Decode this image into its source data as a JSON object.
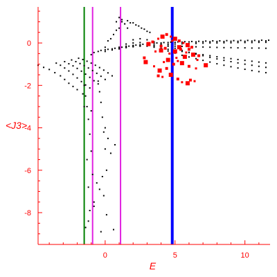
{
  "chart_data": {
    "type": "scatter",
    "xlabel": "E",
    "ylabel": "<J3>",
    "xlim": [
      -4.8,
      11.8
    ],
    "ylim": [
      -9.5,
      1.7
    ],
    "x_ticks": [
      0,
      5,
      10
    ],
    "y_ticks": [
      0,
      -2,
      -4,
      -6,
      -8
    ],
    "grid": false,
    "colors": {
      "axis": "#ff0000",
      "points": "#000000",
      "highlight": "#ff0000",
      "green_line": "#008000",
      "magenta_line": "#e020e0",
      "blue_line": "#0000ff"
    },
    "vertical_lines": [
      {
        "x": -1.5,
        "color": "#008000"
      },
      {
        "x": -0.9,
        "color": "#e020e0"
      },
      {
        "x": 1.1,
        "color": "#e020e0"
      },
      {
        "x": 4.8,
        "color": "#0000ff"
      }
    ],
    "series": [
      {
        "color": "#000000",
        "marker": "dot",
        "x": [
          -4.8,
          -4.4,
          -4.0,
          -3.6,
          -3.2,
          -2.9,
          -2.6,
          -2.3,
          -2.0,
          -3.5,
          -3.2,
          -2.9,
          -2.6,
          -2.3,
          -2.0,
          -1.7,
          -1.4,
          -1.1,
          -2.9,
          -2.6,
          -2.3,
          -2.0,
          -1.7,
          -1.4,
          -1.1,
          -0.8,
          -0.5,
          -2.4,
          -2.1,
          -1.8,
          -1.5,
          -1.2,
          -0.9,
          -0.6,
          -0.3,
          0.0,
          -1.9,
          -1.6,
          -1.3,
          -1.0,
          -0.7,
          -0.4,
          -0.1,
          0.2,
          0.5,
          -1.0,
          -0.5,
          0.0,
          0.5,
          1.0,
          1.5,
          2.0,
          2.5,
          3.0,
          3.5,
          4.0,
          4.5,
          5.0,
          5.5,
          6.0,
          6.5,
          7.0,
          7.5,
          8.0,
          8.5,
          9.0,
          9.5,
          10.0,
          10.5,
          11.0,
          11.5,
          -0.8,
          -0.3,
          0.2,
          0.7,
          1.2,
          1.7,
          2.2,
          2.7,
          3.2,
          3.7,
          4.2,
          4.7,
          5.2,
          5.7,
          6.2,
          6.7,
          7.2,
          7.7,
          8.2,
          8.7,
          9.2,
          9.7,
          10.2,
          10.7,
          11.2,
          11.7,
          0.0,
          0.5,
          1.0,
          1.5,
          2.0,
          2.5,
          3.0,
          3.5,
          4.0,
          4.5,
          5.0,
          5.5,
          6.0,
          6.5,
          7.0,
          7.5,
          8.0,
          8.5,
          9.0,
          9.5,
          10.0,
          10.5,
          11.0,
          11.5,
          0.5,
          1.0,
          1.5,
          2.0,
          2.5,
          3.0,
          3.5,
          4.0,
          4.5,
          5.0,
          5.5,
          6.0,
          6.5,
          7.0,
          7.5,
          8.0,
          8.5,
          9.0,
          9.5,
          10.0,
          10.5,
          11.0,
          11.5,
          1.0,
          1.5,
          2.0,
          2.5,
          3.0,
          3.5,
          4.0,
          4.5,
          5.0,
          5.5,
          6.0,
          6.5,
          7.0,
          7.5,
          8.0,
          8.5,
          9.0,
          9.5,
          10.0,
          10.5,
          11.0,
          11.5,
          1.5,
          2.0,
          2.5,
          3.0,
          3.5,
          4.0,
          4.5,
          5.0,
          5.5,
          6.0,
          6.5,
          7.0,
          7.5,
          8.0,
          8.5,
          9.0,
          9.5,
          10.0,
          10.5,
          11.0,
          11.5,
          2.0,
          2.5,
          3.0,
          3.5,
          4.0,
          4.5,
          5.0,
          5.5,
          6.0,
          6.5,
          7.0,
          7.5,
          8.0,
          8.5,
          9.0,
          9.5,
          10.0,
          10.5,
          11.0,
          11.5,
          0.2,
          0.6,
          1.0,
          1.4,
          1.8,
          2.2,
          2.6,
          3.0,
          0.0,
          0.4,
          0.8,
          1.2,
          1.6,
          2.0,
          2.4,
          2.8,
          3.2,
          0.8,
          1.0,
          1.2,
          1.4,
          1.6,
          -0.5,
          -0.4,
          -0.3,
          -0.2,
          -0.1,
          0.0,
          0.1,
          -1.5,
          -1.4,
          -1.3,
          -1.2,
          -1.1,
          -1.0,
          -0.9,
          -0.8,
          0.0,
          0.2,
          0.4,
          -1.6,
          -1.5,
          -1.3,
          -1.2,
          -0.2,
          -0.1,
          0.1,
          0.6,
          -0.8,
          -0.4,
          -1.1,
          -0.6,
          -1.4,
          -1.2,
          -0.3,
          0.7,
          -1.0
        ],
        "y": [
          -1.05,
          -1.15,
          -1.25,
          -1.4,
          -1.55,
          -1.72,
          -1.9,
          -2.05,
          -2.2,
          -0.95,
          -1.05,
          -1.18,
          -1.32,
          -1.48,
          -1.65,
          -1.82,
          -1.98,
          -2.12,
          -0.88,
          -0.98,
          -1.08,
          -1.2,
          -1.33,
          -1.47,
          -1.62,
          -1.78,
          -1.93,
          -0.8,
          -0.88,
          -0.97,
          -1.07,
          -1.18,
          -1.3,
          -1.43,
          -1.57,
          -1.72,
          -0.72,
          -0.78,
          -0.86,
          -0.95,
          -1.05,
          -1.16,
          -1.28,
          -1.41,
          -1.55,
          -0.55,
          -0.4,
          -0.32,
          -0.28,
          -0.22,
          -0.18,
          -0.12,
          -0.08,
          -0.05,
          -0.02,
          0.0,
          0.02,
          0.03,
          0.04,
          0.05,
          0.05,
          0.06,
          0.06,
          0.07,
          0.07,
          0.08,
          0.08,
          0.08,
          0.09,
          0.09,
          0.1,
          -0.45,
          -0.35,
          -0.3,
          -0.25,
          -0.2,
          -0.15,
          -0.1,
          -0.06,
          -0.03,
          0.0,
          0.02,
          0.04,
          0.05,
          0.06,
          0.07,
          0.08,
          0.09,
          0.1,
          0.1,
          0.11,
          0.11,
          0.12,
          0.12,
          0.12,
          0.13,
          0.13,
          -0.4,
          -0.33,
          -0.28,
          -0.22,
          -0.18,
          -0.15,
          -0.12,
          -0.1,
          -0.08,
          -0.06,
          -0.05,
          -0.04,
          -0.03,
          -0.02,
          -0.01,
          0.0,
          0.0,
          0.01,
          0.01,
          0.02,
          0.02,
          0.02,
          0.03,
          0.03,
          -0.3,
          -0.25,
          -0.2,
          -0.16,
          -0.14,
          -0.12,
          -0.12,
          -0.13,
          -0.14,
          -0.15,
          -0.16,
          -0.17,
          -0.18,
          -0.19,
          -0.2,
          -0.21,
          -0.22,
          -0.22,
          -0.23,
          -0.23,
          -0.24,
          -0.24,
          -0.25,
          -0.2,
          -0.15,
          -0.12,
          -0.12,
          -0.15,
          -0.2,
          -0.25,
          -0.3,
          -0.35,
          -0.4,
          -0.45,
          -0.5,
          -0.55,
          -0.6,
          -0.65,
          -0.7,
          -0.74,
          -0.78,
          -0.82,
          -0.86,
          -0.9,
          -0.94,
          -0.05,
          0.0,
          0.02,
          -0.05,
          -0.15,
          -0.28,
          -0.38,
          -0.48,
          -0.58,
          -0.66,
          -0.74,
          -0.82,
          -0.9,
          -0.98,
          -1.05,
          -1.12,
          -1.18,
          -1.24,
          -1.3,
          -1.35,
          -1.4,
          0.15,
          0.2,
          0.15,
          0.05,
          -0.05,
          -0.15,
          -0.25,
          -0.35,
          -0.44,
          -0.52,
          -0.6,
          -0.68,
          -0.75,
          -0.82,
          -0.88,
          -0.94,
          -1.0,
          -1.05,
          -1.1,
          -1.15,
          0.1,
          0.4,
          0.7,
          0.9,
          0.95,
          0.85,
          0.7,
          0.55,
          -0.2,
          0.2,
          0.6,
          1.0,
          1.05,
          0.95,
          0.8,
          0.65,
          0.5,
          1.0,
          1.2,
          1.1,
          0.9,
          0.7,
          -1.8,
          -2.3,
          -2.8,
          -3.5,
          -4.2,
          -5.0,
          -6.0,
          -2.0,
          -2.5,
          -3.0,
          -3.6,
          -4.3,
          -5.1,
          -6.2,
          -7.5,
          -4.0,
          -4.5,
          -5.2,
          -2.4,
          -3.0,
          -5.5,
          -6.8,
          -6.3,
          -7.2,
          -8.1,
          -8.8,
          -7.7,
          -6.9,
          -7.9,
          -6.6,
          -8.7,
          -8.4,
          -8.9,
          -4.8,
          -3.2
        ]
      },
      {
        "color": "#ff0000",
        "marker": "square",
        "x": [
          3.1,
          3.4,
          3.8,
          4.1,
          4.4,
          4.7,
          5.0,
          5.3,
          5.6,
          5.9,
          6.2,
          3.6,
          4.0,
          4.3,
          4.6,
          5.0,
          5.4,
          5.8,
          6.3,
          6.7,
          4.2,
          4.5,
          4.9,
          5.2,
          5.5,
          6.0,
          6.5,
          7.2,
          2.8,
          3.5,
          3.9,
          4.4,
          5.1,
          5.7,
          3.8,
          4.1,
          4.7,
          5.2,
          5.5,
          5.9,
          6.1,
          6.4,
          2.9,
          4.0,
          4.8,
          5.3,
          6.0,
          6.6
        ],
        "y": [
          -0.05,
          0.05,
          0.2,
          0.3,
          0.4,
          0.3,
          0.2,
          0.1,
          0.0,
          -0.1,
          -0.2,
          -0.4,
          -0.35,
          -0.25,
          -0.5,
          -0.4,
          -0.3,
          -0.45,
          -0.55,
          -0.6,
          -0.9,
          -0.8,
          -1.0,
          -0.85,
          -0.95,
          -1.1,
          -1.2,
          -1.05,
          -0.7,
          -1.1,
          -1.3,
          -1.2,
          -0.7,
          -0.65,
          -1.55,
          -1.6,
          -1.5,
          -1.7,
          -1.85,
          -1.9,
          -1.75,
          -1.8,
          -0.9,
          -0.15,
          0.1,
          -0.2,
          -0.3,
          -0.8
        ]
      }
    ]
  }
}
